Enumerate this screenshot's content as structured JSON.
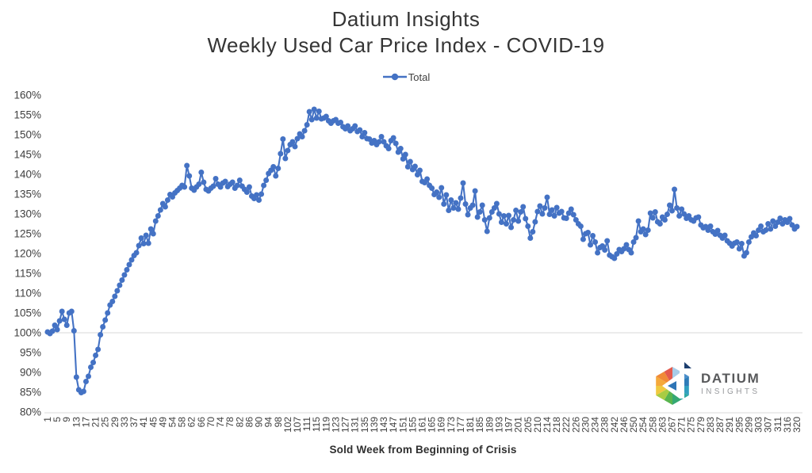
{
  "title": {
    "line1": "Datium Insights",
    "line2": "Weekly Used Car Price Index - COVID-19"
  },
  "legend": {
    "series_label": "Total"
  },
  "axes": {
    "x_title": "Sold Week from Beginning of Crisis",
    "y_tick_labels": [
      "160%",
      "155%",
      "150%",
      "145%",
      "140%",
      "135%",
      "130%",
      "125%",
      "120%",
      "115%",
      "110%",
      "105%",
      "100%",
      "95%",
      "90%",
      "85%",
      "80%"
    ]
  },
  "branding": {
    "name": "DATIUM",
    "sub": "INSIGHTS"
  },
  "colors": {
    "series": "#4472C4",
    "gridline": "#D9D9D9",
    "axis_line": "#D9D9D9",
    "axis_text": "#404040",
    "title_text": "#353535"
  },
  "chart_data": {
    "type": "line",
    "title": "Datium Insights Weekly Used Car Price Index - COVID-19",
    "xlabel": "Sold Week from Beginning of Crisis",
    "ylabel": "",
    "ylim": [
      80,
      160
    ],
    "y_tick_step": 5,
    "y_tick_format": "percent",
    "gridlines": "horizontal line at 100% only",
    "legend_position": "top-center",
    "marker": "circle",
    "labels_every_n_points": 4,
    "x_tick_labels": [
      "1",
      "5",
      "9",
      "13",
      "17",
      "21",
      "25",
      "29",
      "33",
      "37",
      "41",
      "45",
      "49",
      "54",
      "58",
      "62",
      "66",
      "70",
      "74",
      "78",
      "82",
      "86",
      "90",
      "94",
      "98",
      "102",
      "107",
      "111",
      "115",
      "119",
      "123",
      "127",
      "131",
      "135",
      "139",
      "143",
      "147",
      "151",
      "155",
      "161",
      "165",
      "169",
      "173",
      "177",
      "181",
      "185",
      "189",
      "193",
      "197",
      "201",
      "205",
      "210",
      "214",
      "218",
      "222",
      "226",
      "230",
      "234",
      "238",
      "242",
      "246",
      "250",
      "254",
      "258",
      "263",
      "267",
      "271",
      "275",
      "279",
      "283",
      "287",
      "291",
      "295",
      "299",
      "303",
      "307",
      "311",
      "316",
      "320"
    ],
    "series": [
      {
        "name": "Total",
        "values": [
          100.2,
          99.8,
          100.4,
          101.9,
          100.8,
          103,
          105.4,
          103.4,
          101.9,
          105,
          105.4,
          100.5,
          88.8,
          85.6,
          84.9,
          85.2,
          87.7,
          89,
          91.3,
          92.5,
          94.3,
          95.8,
          99.5,
          101.5,
          103.2,
          105,
          107,
          107.9,
          109.2,
          110.6,
          112,
          113.3,
          114.6,
          115.9,
          117.2,
          118.4,
          119.5,
          120.2,
          122,
          123.9,
          122.5,
          124.6,
          122.6,
          126.2,
          125,
          128.2,
          129.5,
          131,
          132.6,
          131.8,
          133.5,
          134.9,
          134.3,
          135.3,
          135.9,
          136.5,
          137.2,
          136.8,
          142.2,
          139.6,
          136.5,
          136,
          136.8,
          137.5,
          140.5,
          138,
          136.2,
          135.8,
          136.5,
          137,
          138.9,
          137.5,
          136.8,
          137.8,
          138.2,
          136.9,
          137.5,
          138,
          136.5,
          137.2,
          138.5,
          137,
          136.2,
          135.5,
          136.8,
          134.5,
          133.9,
          134.8,
          133.5,
          135,
          137.2,
          138.5,
          140.2,
          141,
          141.9,
          139.6,
          141.5,
          145.2,
          148.9,
          144,
          146,
          147.5,
          148.2,
          147,
          149,
          150.2,
          149.5,
          151,
          152.5,
          155.8,
          153.8,
          156.4,
          154.2,
          155.9,
          154,
          154.2,
          154.6,
          153.5,
          152.9,
          153.5,
          153.8,
          152.9,
          153.1,
          152,
          151.5,
          152.2,
          151,
          151.5,
          152.2,
          150.8,
          151.2,
          149.5,
          150.5,
          149,
          148.9,
          147.9,
          148.5,
          147.5,
          148.2,
          149.5,
          148.2,
          147.2,
          146.5,
          148.5,
          149.2,
          147.8,
          145.6,
          146.5,
          143.9,
          145,
          141.9,
          143.2,
          141.2,
          142,
          139.9,
          141,
          138.2,
          137.9,
          138.8,
          137.2,
          136.5,
          134.9,
          135.5,
          134.2,
          136.6,
          132.5,
          134.8,
          130.9,
          133.5,
          131.5,
          132.8,
          131.2,
          134,
          137.8,
          132.5,
          129.8,
          131.5,
          132.2,
          135.8,
          129.2,
          130.5,
          132.2,
          128.5,
          125.6,
          129,
          130.5,
          131.5,
          132.6,
          130,
          127.9,
          129.5,
          127.5,
          129.6,
          126.6,
          128.5,
          130.9,
          128.2,
          130.5,
          131.8,
          128.8,
          126.9,
          123.9,
          125.5,
          128,
          130.6,
          132,
          130,
          131.5,
          134.2,
          129.9,
          131,
          129.5,
          131.6,
          130.2,
          130.6,
          129,
          128.9,
          130.2,
          131.2,
          129.8,
          128.5,
          127.5,
          126.9,
          123.6,
          125,
          125.3,
          122.2,
          124.5,
          122.9,
          120.2,
          121.5,
          121.9,
          120.9,
          123.2,
          119.6,
          119.2,
          118.8,
          119.9,
          121,
          120.5,
          121.2,
          122.2,
          121,
          120.2,
          122.9,
          124,
          128.2,
          125.5,
          126.2,
          124.8,
          125.9,
          130.2,
          129,
          130.5,
          128,
          127.5,
          129.2,
          128.5,
          129.9,
          132.2,
          130.8,
          136.2,
          131.5,
          129.5,
          131.2,
          130,
          128.9,
          129.5,
          128.5,
          128.2,
          129,
          129.2,
          127.2,
          126.5,
          126.8,
          125.9,
          126.9,
          125.5,
          124.9,
          125.8,
          124.6,
          123.9,
          124.6,
          123.2,
          122.6,
          121.9,
          122.6,
          122.9,
          121.2,
          122.5,
          119.4,
          120.2,
          122.9,
          124.2,
          125.2,
          124.5,
          125.9,
          126.9,
          125.5,
          125.9,
          127.5,
          126.2,
          128.2,
          126.9,
          127.9,
          128.9,
          127.5,
          128.5,
          127.9,
          128.8,
          127.2,
          126.2,
          126.8
        ]
      }
    ]
  }
}
